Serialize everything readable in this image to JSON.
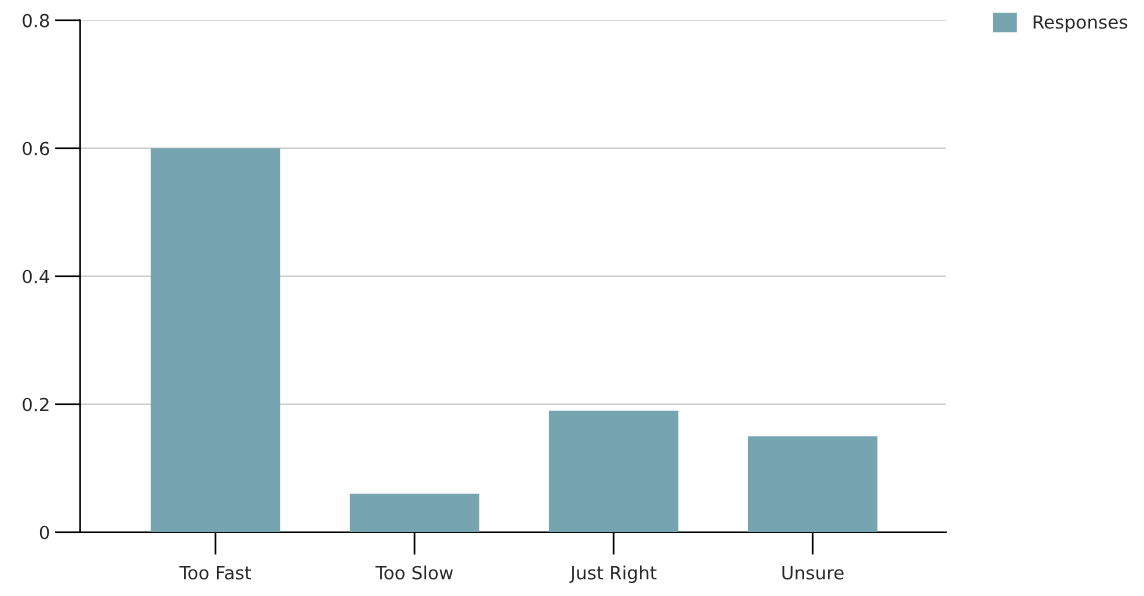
{
  "chart_data": {
    "type": "bar",
    "categories": [
      "Too Fast",
      "Too Slow",
      "Just Right",
      "Unsure"
    ],
    "series": [
      {
        "name": "Responses",
        "color": "#76a5af",
        "values": [
          0.6,
          0.06,
          0.19,
          0.15
        ]
      }
    ],
    "ylim": [
      0,
      0.8
    ],
    "yticks": [
      {
        "value": 0,
        "label": "0"
      },
      0.2,
      0.4,
      0.6,
      0.8
    ],
    "grid": "y",
    "legend": "top right"
  }
}
